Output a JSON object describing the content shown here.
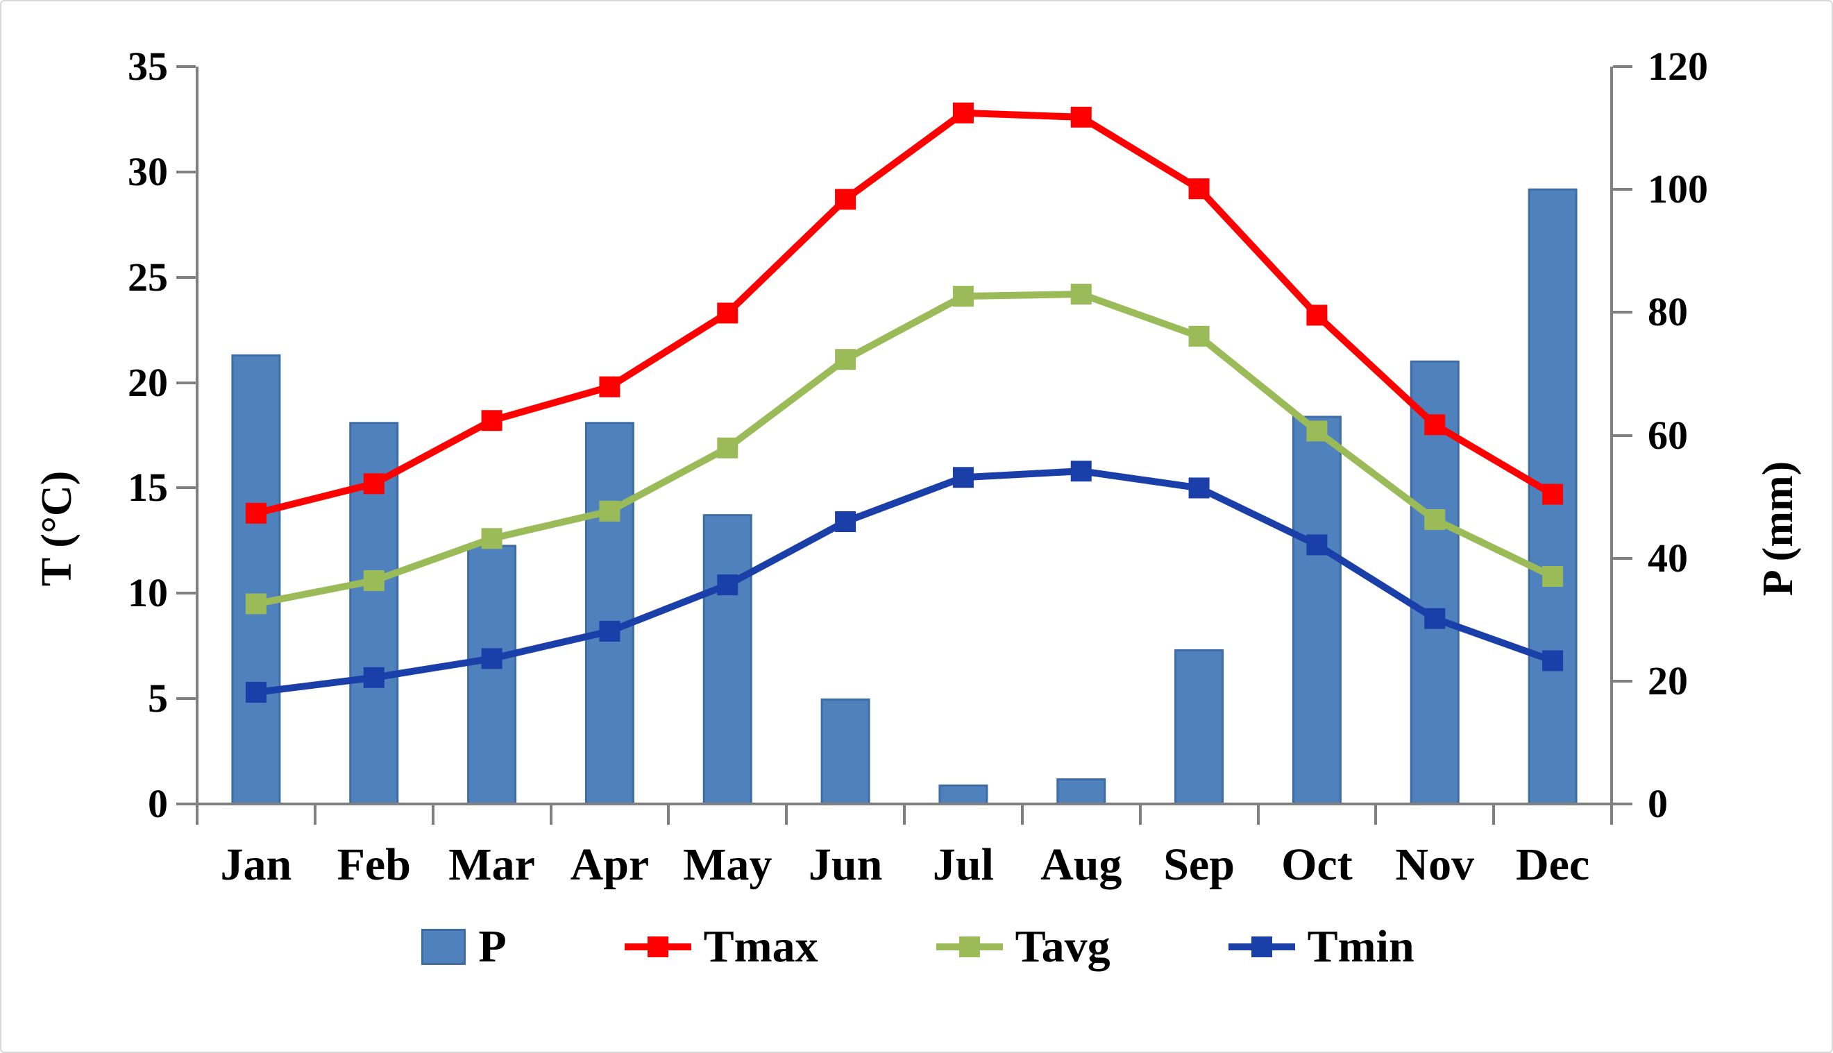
{
  "chart_data": {
    "type": "bar",
    "subtype": "combo-bar-line-dual-axis",
    "title": "",
    "categories": [
      "Jan",
      "Feb",
      "Mar",
      "Apr",
      "May",
      "Jun",
      "Jul",
      "Aug",
      "Sep",
      "Oct",
      "Nov",
      "Dec"
    ],
    "series": [
      {
        "name": "P",
        "type": "bar",
        "axis": "right",
        "color": "#4F81BD",
        "border_color": "#3E6DA5",
        "values": [
          73,
          62,
          42,
          62,
          47,
          17,
          3,
          4,
          25,
          63,
          72,
          100
        ]
      },
      {
        "name": "Tmax",
        "type": "line",
        "axis": "left",
        "color": "#FF0000",
        "values": [
          13.8,
          15.2,
          18.2,
          19.8,
          23.3,
          28.7,
          32.8,
          32.6,
          29.2,
          23.2,
          18.0,
          14.7
        ]
      },
      {
        "name": "Tavg",
        "type": "line",
        "axis": "left",
        "color": "#9BBB59",
        "values": [
          9.5,
          10.6,
          12.6,
          13.9,
          16.9,
          21.1,
          24.1,
          24.2,
          22.2,
          17.7,
          13.5,
          10.8
        ]
      },
      {
        "name": "Tmin",
        "type": "line",
        "axis": "left",
        "color": "#1A3FA8",
        "values": [
          5.3,
          6.0,
          6.9,
          8.2,
          10.4,
          13.4,
          15.5,
          15.8,
          15.0,
          12.3,
          8.8,
          6.8
        ]
      }
    ],
    "left_axis": {
      "label": "T (°C)",
      "min": 0,
      "max": 35,
      "step": 5,
      "tick_labels": [
        "0",
        "5",
        "10",
        "15",
        "20",
        "25",
        "30",
        "35"
      ]
    },
    "right_axis": {
      "label": "P (mm)",
      "min": 0,
      "max": 120,
      "step": 20,
      "tick_labels": [
        "0",
        "20",
        "40",
        "60",
        "80",
        "100",
        "120"
      ]
    },
    "legend": {
      "position": "bottom",
      "entries": [
        "P",
        "Tmax",
        "Tavg",
        "Tmin"
      ]
    },
    "grid": false,
    "axis_color": "#808080"
  }
}
